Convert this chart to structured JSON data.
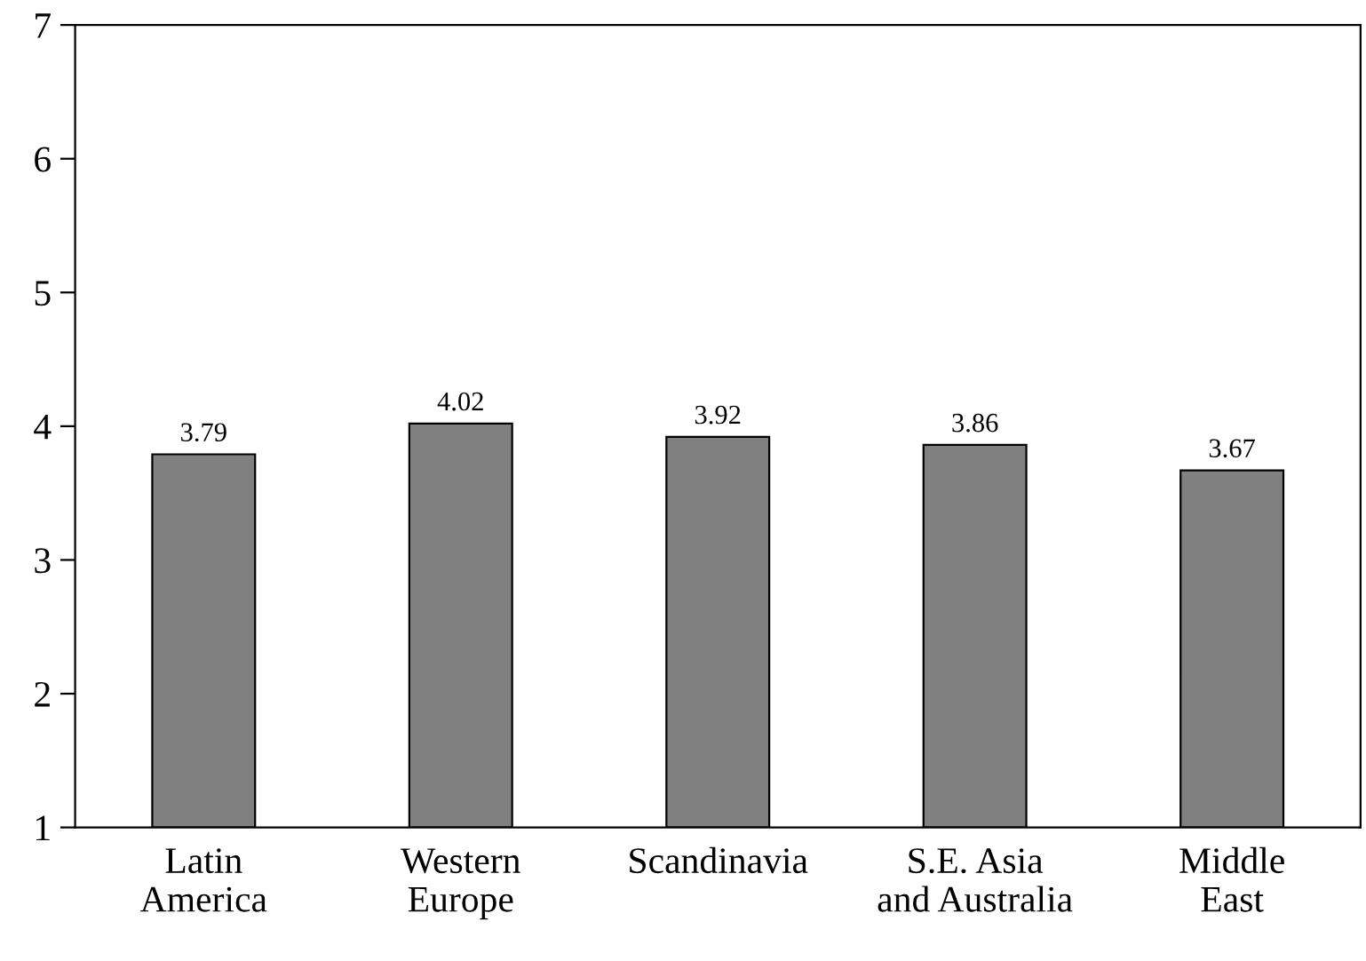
{
  "chart_data": {
    "type": "bar",
    "categories": [
      "Latin\nAmerica",
      "Western\nEurope",
      "Scandinavia",
      "S.E. Asia\nand Australia",
      "Middle\nEast"
    ],
    "values": [
      3.79,
      4.02,
      3.92,
      3.86,
      3.67
    ],
    "color": "#808080",
    "ylim": [
      1,
      7
    ],
    "yticks": [
      1,
      2,
      3,
      4,
      5,
      6,
      7
    ],
    "data_labels": true,
    "grid": false
  }
}
